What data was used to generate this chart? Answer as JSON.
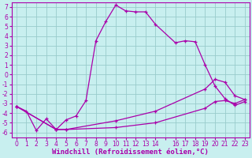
{
  "xlabel": "Windchill (Refroidissement éolien,°C)",
  "bg_color": "#c8efef",
  "line_color": "#aa00aa",
  "grid_color": "#99cccc",
  "xlim": [
    -0.5,
    23.5
  ],
  "ylim": [
    -6.5,
    7.5
  ],
  "line1_x": [
    0,
    1,
    2,
    3,
    4,
    5,
    6,
    7,
    8,
    9,
    10,
    11,
    12,
    13,
    14,
    16,
    17,
    18,
    19,
    20,
    21,
    22,
    23
  ],
  "line1_y": [
    -3.3,
    -3.8,
    -5.8,
    -4.6,
    -5.7,
    -4.7,
    -4.3,
    -2.7,
    3.5,
    5.5,
    7.2,
    6.6,
    6.5,
    6.5,
    5.2,
    3.3,
    3.5,
    3.4,
    1.0,
    -1.2,
    -2.5,
    -3.2,
    -2.8
  ],
  "line2_x": [
    0,
    4,
    5,
    10,
    14,
    19,
    20,
    21,
    22,
    23
  ],
  "line2_y": [
    -3.3,
    -5.7,
    -5.7,
    -5.5,
    -5.0,
    -3.5,
    -2.8,
    -2.7,
    -3.0,
    -2.6
  ],
  "line3_x": [
    0,
    4,
    5,
    10,
    14,
    19,
    20,
    21,
    22,
    23
  ],
  "line3_y": [
    -3.3,
    -5.7,
    -5.7,
    -4.8,
    -3.8,
    -1.5,
    -0.5,
    -0.8,
    -2.2,
    -2.6
  ],
  "xlabel_fontsize": 6.5,
  "tick_fontsize": 5.5
}
